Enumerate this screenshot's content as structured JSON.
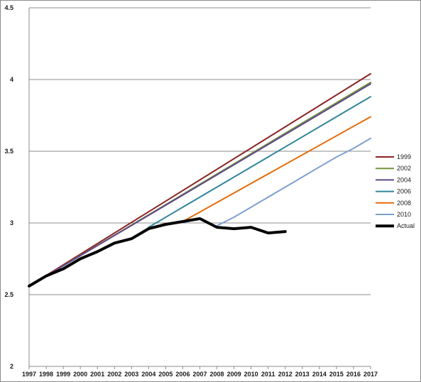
{
  "chart_data": {
    "type": "line",
    "title": "",
    "xlabel": "",
    "ylabel": "",
    "xlim": [
      1997,
      2017
    ],
    "ylim": [
      2,
      4.5
    ],
    "x_ticks": [
      "1997",
      "1998",
      "1999",
      "2000",
      "2001",
      "2002",
      "2003",
      "2004",
      "2005",
      "2006",
      "2007",
      "2008",
      "2009",
      "2010",
      "2011",
      "2012",
      "2013",
      "2014",
      "2015",
      "2016",
      "2017"
    ],
    "y_ticks": [
      "2",
      "2.5",
      "3",
      "3.5",
      "4",
      "4.5"
    ],
    "y_tick_values": [
      2,
      2.5,
      3,
      3.5,
      4,
      4.5
    ],
    "grid": "horizontal",
    "legend_position": "right",
    "series": [
      {
        "name": "1999",
        "color": "#8b2323",
        "width": 2,
        "points": [
          [
            1997,
            2.56
          ],
          [
            2017,
            4.04
          ]
        ]
      },
      {
        "name": "2002",
        "color": "#77933c",
        "width": 2,
        "points": [
          [
            1997,
            2.56
          ],
          [
            2017,
            3.98
          ]
        ]
      },
      {
        "name": "2004",
        "color": "#5f4a8b",
        "width": 2,
        "points": [
          [
            1997,
            2.56
          ],
          [
            2017,
            3.97
          ]
        ]
      },
      {
        "name": "2006",
        "color": "#31859c",
        "width": 2,
        "points": [
          [
            2004,
            2.97
          ],
          [
            2017,
            3.88
          ]
        ]
      },
      {
        "name": "2008",
        "color": "#e46c0a",
        "width": 2,
        "points": [
          [
            2006,
            3.01
          ],
          [
            2017,
            3.74
          ]
        ]
      },
      {
        "name": "2010",
        "color": "#7f9fd0",
        "width": 2,
        "points": [
          [
            2008,
            2.98
          ],
          [
            2009,
            3.04
          ],
          [
            2010,
            3.11
          ],
          [
            2011,
            3.18
          ],
          [
            2012,
            3.25
          ],
          [
            2013,
            3.32
          ],
          [
            2014,
            3.39
          ],
          [
            2015,
            3.46
          ],
          [
            2016,
            3.52
          ],
          [
            2017,
            3.59
          ]
        ]
      },
      {
        "name": "Actual",
        "color": "#000000",
        "width": 4,
        "points": [
          [
            1997,
            2.56
          ],
          [
            1998,
            2.63
          ],
          [
            1999,
            2.68
          ],
          [
            2000,
            2.75
          ],
          [
            2001,
            2.8
          ],
          [
            2002,
            2.86
          ],
          [
            2003,
            2.89
          ],
          [
            2004,
            2.96
          ],
          [
            2005,
            2.99
          ],
          [
            2006,
            3.01
          ],
          [
            2007,
            3.03
          ],
          [
            2008,
            2.97
          ],
          [
            2009,
            2.96
          ],
          [
            2010,
            2.97
          ],
          [
            2011,
            2.93
          ],
          [
            2012,
            2.94
          ]
        ]
      }
    ]
  }
}
